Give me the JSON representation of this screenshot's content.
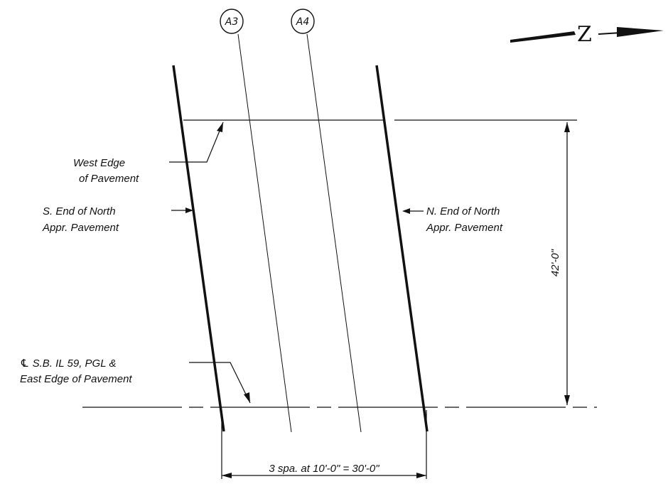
{
  "north_arrow": {
    "letter": "Z"
  },
  "grid_markers": [
    {
      "id": "a3",
      "label": "A3"
    },
    {
      "id": "a4",
      "label": "A4"
    }
  ],
  "callouts": {
    "west_edge": [
      "West Edge",
      "of Pavement"
    ],
    "south_end": [
      "S. End of North",
      "Appr. Pavement"
    ],
    "north_end": [
      "N. End of North",
      "Appr. Pavement"
    ],
    "centerline": [
      "℄ S.B. IL 59, PGL &",
      "East Edge of Pavement"
    ]
  },
  "dimensions": {
    "width": "42'-0\"",
    "spans": "3 spa. at 10'-0\" = 30'-0\""
  },
  "colors": {
    "ink": "#111111",
    "background": "#ffffff"
  }
}
